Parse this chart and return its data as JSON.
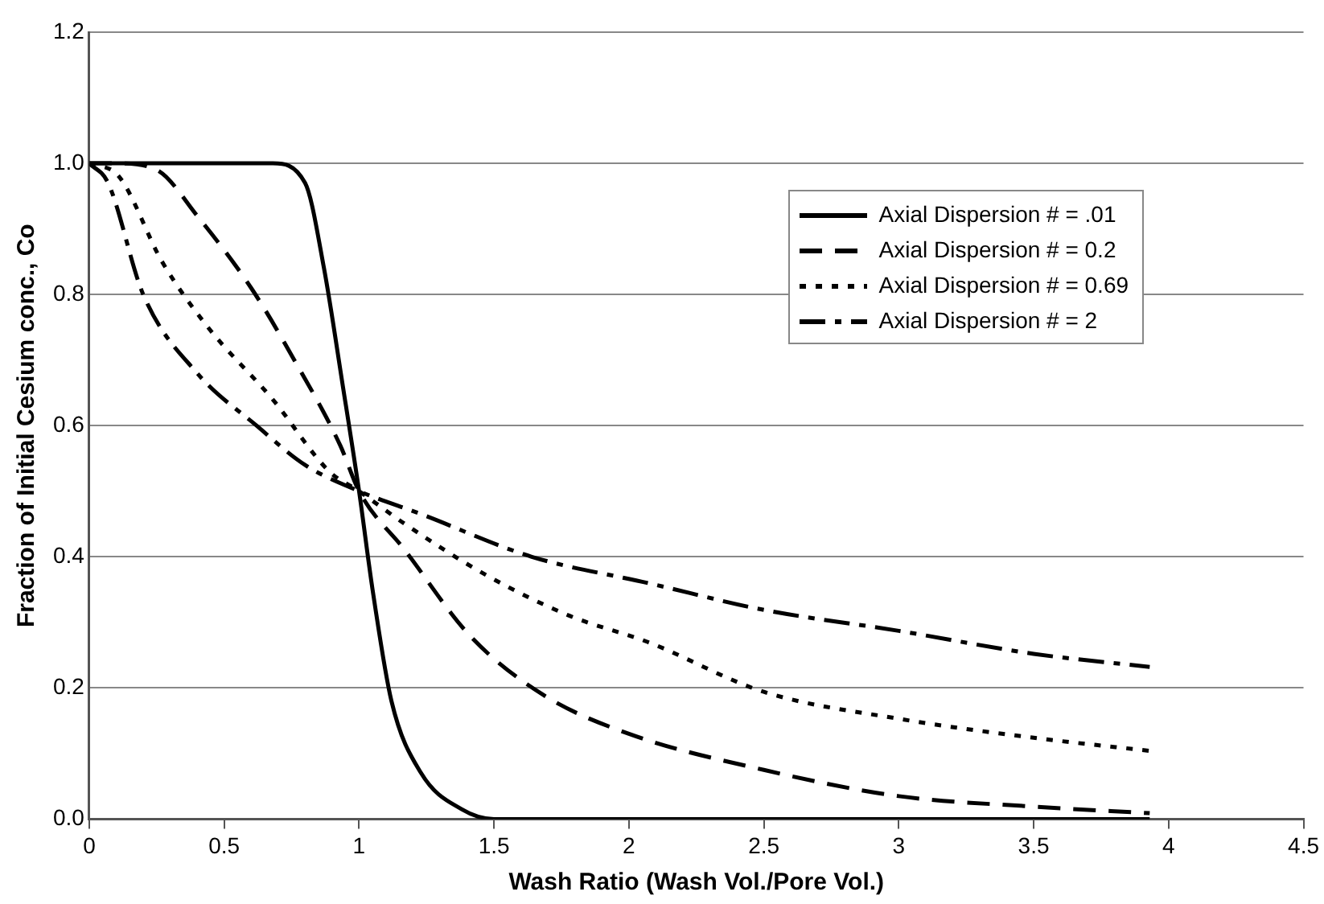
{
  "chart_data": {
    "type": "line",
    "xlabel": "Wash Ratio (Wash Vol./Pore Vol.)",
    "ylabel": "Fraction of Initial Cesium conc., Co",
    "xlim": [
      0,
      4.5
    ],
    "xticks": [
      0,
      0.5,
      1,
      1.5,
      2,
      2.5,
      3,
      3.5,
      4,
      4.5
    ],
    "ylim": [
      0,
      1.2
    ],
    "yticks": [
      {
        "value": 0,
        "label": "0.0"
      },
      {
        "value": 0.2,
        "label": "0.2"
      },
      {
        "value": 0.4,
        "label": "0.4"
      },
      {
        "value": 0.6,
        "label": "0.6"
      },
      {
        "value": 0.8,
        "label": "0.8"
      },
      {
        "value": 1,
        "label": "1.0"
      },
      {
        "value": 1.2,
        "label": "1.2"
      }
    ],
    "grid": "y",
    "legend": "top right",
    "marker": "none",
    "series": [
      {
        "name": "Axial Dispersion # = .01",
        "color": "#000000",
        "line_style": "solid",
        "x": [
          0,
          0.6,
          0.68,
          0.8,
          0.87,
          0.94,
          1,
          1.05,
          1.12,
          1.23,
          1.38,
          1.5,
          2,
          3,
          3.93
        ],
        "values": [
          1,
          1,
          1,
          0.97,
          0.84,
          0.66,
          0.5,
          0.35,
          0.18,
          0.07,
          0.015,
          0,
          0,
          0,
          0
        ]
      },
      {
        "name": "Axial Dispersion # = 0.2",
        "color": "#000000",
        "line_style": "dashed",
        "x": [
          0,
          0.1,
          0.25,
          0.4,
          0.6,
          0.76,
          0.93,
          1,
          1.17,
          1.41,
          1.68,
          2,
          2.5,
          3,
          3.5,
          3.93
        ],
        "values": [
          1,
          1,
          0.99,
          0.92,
          0.81,
          0.7,
          0.57,
          0.5,
          0.41,
          0.28,
          0.19,
          0.13,
          0.075,
          0.035,
          0.019,
          0.009
        ]
      },
      {
        "name": "Axial Dispersion # = 0.69",
        "color": "#000000",
        "line_style": "dotted",
        "x": [
          0,
          0.11,
          0.27,
          0.44,
          0.68,
          0.89,
          1,
          1.17,
          1.48,
          1.78,
          2.07,
          2.5,
          3,
          3.5,
          3.93
        ],
        "values": [
          1,
          0.98,
          0.85,
          0.75,
          0.64,
          0.53,
          0.5,
          0.45,
          0.37,
          0.31,
          0.27,
          0.194,
          0.153,
          0.124,
          0.104
        ]
      },
      {
        "name": "Axial Dispersion # = 2",
        "color": "#000000",
        "line_style": "dashdot",
        "x": [
          0,
          0.07,
          0.2,
          0.4,
          0.62,
          0.8,
          1,
          1.23,
          1.64,
          2.07,
          2.5,
          3,
          3.5,
          3.93
        ],
        "values": [
          1,
          0.97,
          0.8,
          0.68,
          0.6,
          0.54,
          0.5,
          0.465,
          0.4,
          0.36,
          0.319,
          0.287,
          0.252,
          0.232
        ]
      }
    ]
  }
}
